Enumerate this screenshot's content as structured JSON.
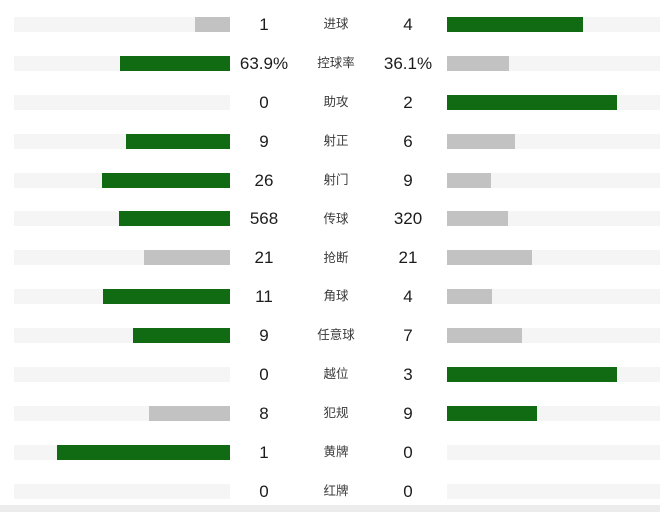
{
  "panel": {
    "description_labels": {
      "goals": "进球",
      "possession": "控球率",
      "assists": "助攻",
      "shots_on_target": "射正",
      "shots": "射门",
      "passes": "传球",
      "tackles": "抢断",
      "corners": "角球",
      "free_kicks": "任意球",
      "offsides": "越位",
      "fouls": "犯规",
      "yellow_cards": "黄牌",
      "red_cards": "红牌"
    }
  },
  "colors": {
    "bar_win": "#106b13",
    "bar_lose": "#c2c2c2",
    "track": "#f5f5f5",
    "footer_strip": "#ececec",
    "value_text": "#1c1c1c",
    "label_text": "#3a3a3a"
  },
  "rows": [
    {
      "label": "进球",
      "left_display": "1",
      "right_display": "4",
      "left_value": 1,
      "right_value": 4
    },
    {
      "label": "控球率",
      "left_display": "63.9%",
      "right_display": "36.1%",
      "left_value": 63.9,
      "right_value": 36.1
    },
    {
      "label": "助攻",
      "left_display": "0",
      "right_display": "2",
      "left_value": 0,
      "right_value": 2
    },
    {
      "label": "射正",
      "left_display": "9",
      "right_display": "6",
      "left_value": 9,
      "right_value": 6
    },
    {
      "label": "射门",
      "left_display": "26",
      "right_display": "9",
      "left_value": 26,
      "right_value": 9
    },
    {
      "label": "传球",
      "left_display": "568",
      "right_display": "320",
      "left_value": 568,
      "right_value": 320
    },
    {
      "label": "抢断",
      "left_display": "21",
      "right_display": "21",
      "left_value": 21,
      "right_value": 21
    },
    {
      "label": "角球",
      "left_display": "11",
      "right_display": "4",
      "left_value": 11,
      "right_value": 4
    },
    {
      "label": "任意球",
      "left_display": "9",
      "right_display": "7",
      "left_value": 9,
      "right_value": 7
    },
    {
      "label": "越位",
      "left_display": "0",
      "right_display": "3",
      "left_value": 0,
      "right_value": 3
    },
    {
      "label": "犯规",
      "left_display": "8",
      "right_display": "9",
      "left_value": 8,
      "right_value": 9
    },
    {
      "label": "黄牌",
      "left_display": "1",
      "right_display": "0",
      "left_value": 1,
      "right_value": 0
    },
    {
      "label": "红牌",
      "left_display": "0",
      "right_display": "0",
      "left_value": 0,
      "right_value": 0
    }
  ],
  "chart_data": {
    "type": "bar",
    "orientation": "horizontal-paired",
    "title": "",
    "categories": [
      "进球",
      "控球率",
      "助攻",
      "射正",
      "射门",
      "传球",
      "抢断",
      "角球",
      "任意球",
      "越位",
      "犯规",
      "黄牌",
      "红牌"
    ],
    "series": [
      {
        "name": "left-team",
        "values": [
          1,
          63.9,
          0,
          9,
          26,
          568,
          21,
          11,
          9,
          0,
          8,
          1,
          0
        ]
      },
      {
        "name": "right-team",
        "values": [
          4,
          36.1,
          2,
          6,
          9,
          320,
          21,
          4,
          7,
          3,
          9,
          0,
          0
        ]
      }
    ],
    "value_labels": {
      "left": [
        "1",
        "63.9%",
        "0",
        "9",
        "26",
        "568",
        "21",
        "11",
        "9",
        "0",
        "8",
        "1",
        "0"
      ],
      "right": [
        "4",
        "36.1%",
        "2",
        "6",
        "9",
        "320",
        "21",
        "4",
        "7",
        "3",
        "9",
        "0",
        "0"
      ]
    },
    "encoding_note": "Each row: pair of bars growing from center outward; bar length = value/(left+right) of ~80% track width; higher value bar is dark green, lower or tied bar is gray, zero value shows empty track",
    "legend_position": "none",
    "grid": false
  }
}
